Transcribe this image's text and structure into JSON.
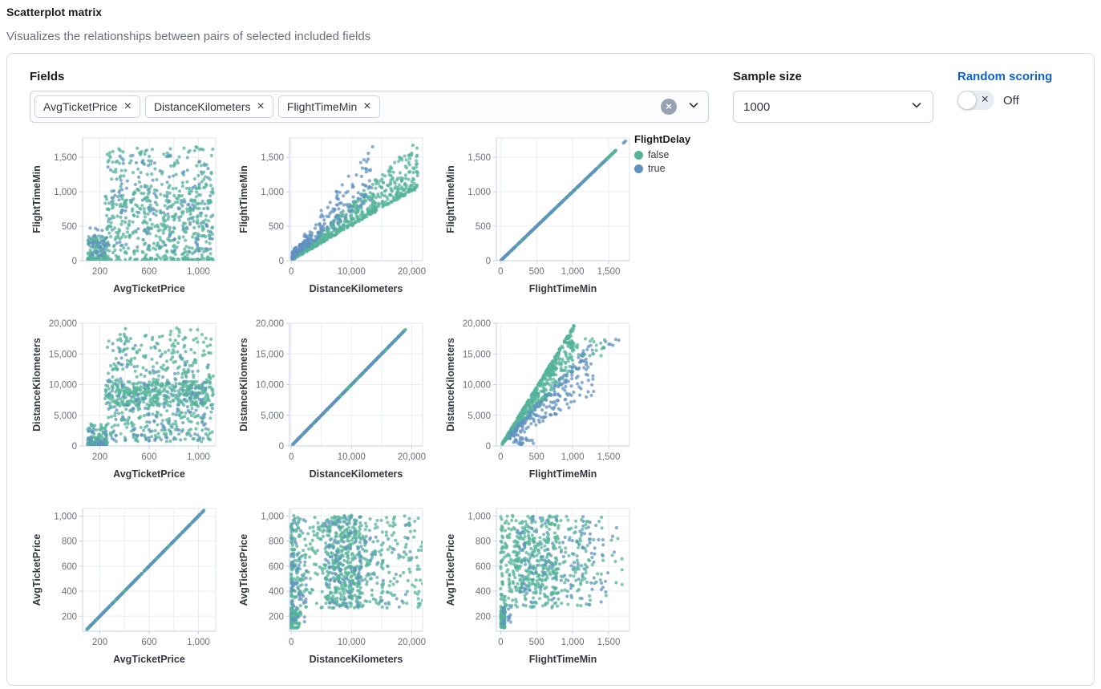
{
  "header": {
    "title": "Scatterplot matrix",
    "subtitle": "Visualizes the relationships between pairs of selected included fields"
  },
  "controls": {
    "fields": {
      "label": "Fields",
      "selected": [
        "AvgTicketPrice",
        "DistanceKilometers",
        "FlightTimeMin"
      ]
    },
    "sample_size": {
      "label": "Sample size",
      "value": "1000"
    },
    "random_scoring": {
      "label": "Random scoring",
      "state": "Off",
      "enabled": false
    }
  },
  "legend": {
    "title": "FlightDelay",
    "items": [
      {
        "label": "false",
        "color": "#54B399"
      },
      {
        "label": "true",
        "color": "#6092C0"
      }
    ]
  },
  "colors": {
    "link_blue": "#0d64d1",
    "panel_border": "#d3dae6",
    "grid_line": "#e9eef6",
    "axis_line": "#c6d1e3",
    "plot_border": "#dde4f0",
    "tick_text": "#69707d",
    "axis_title_text": "#343741",
    "point_green": "#54B399",
    "point_blue": "#6092C0"
  },
  "chart_data": {
    "type": "scatter",
    "layout": "scatter_matrix_3x3",
    "color_by": "FlightDelay",
    "series_colors": {
      "false": "#54B399",
      "true": "#6092C0"
    },
    "point_opacity": 0.75,
    "point_radius": 2.1,
    "fields": [
      "AvgTicketPrice",
      "DistanceKilometers",
      "FlightTimeMin"
    ],
    "axes": {
      "AvgTicketPrice": {
        "as_x": {
          "domain": [
            60,
            1140
          ],
          "ticks": [
            [
              200,
              "200"
            ],
            [
              400,
              ""
            ],
            [
              600,
              "600"
            ],
            [
              800,
              ""
            ],
            [
              1000,
              "1,000"
            ]
          ]
        },
        "as_y": {
          "domain": [
            80,
            1060
          ],
          "ticks": [
            [
              200,
              "200"
            ],
            [
              400,
              "400"
            ],
            [
              600,
              "600"
            ],
            [
              800,
              "800"
            ],
            [
              1000,
              "1,000"
            ]
          ]
        }
      },
      "DistanceKilometers": {
        "as_x": {
          "domain": [
            -300,
            21800
          ],
          "ticks": [
            [
              0,
              "0"
            ],
            [
              5000,
              ""
            ],
            [
              10000,
              "10,000"
            ],
            [
              15000,
              ""
            ],
            [
              20000,
              "20,000"
            ]
          ]
        },
        "as_y": {
          "domain": [
            0,
            20000
          ],
          "ticks": [
            [
              0,
              "0"
            ],
            [
              5000,
              "5,000"
            ],
            [
              10000,
              "10,000"
            ],
            [
              15000,
              "15,000"
            ],
            [
              20000,
              "20,000"
            ]
          ]
        }
      },
      "FlightTimeMin": {
        "as_x": {
          "domain": [
            -60,
            1790
          ],
          "ticks": [
            [
              0,
              "0"
            ],
            [
              500,
              "500"
            ],
            [
              1000,
              "1,000"
            ],
            [
              1500,
              "1,500"
            ]
          ]
        },
        "as_y": {
          "domain": [
            0,
            1780
          ],
          "ticks": [
            [
              0,
              "0"
            ],
            [
              500,
              "500"
            ],
            [
              1000,
              "1,000"
            ],
            [
              1500,
              "1,500"
            ]
          ]
        }
      }
    },
    "charts": [
      {
        "x": "AvgTicketPrice",
        "y": "FlightTimeMin",
        "pattern": "random-scatter",
        "series": [
          {
            "name": "false",
            "gen": [
              {
                "t": "box",
                "n": 430,
                "x": [
                  240,
                  1120
                ],
                "y": [
                  30,
                  1060
                ]
              },
              {
                "t": "box",
                "n": 110,
                "x": [
                  260,
                  1120
                ],
                "y": [
                  1060,
                  1660
                ]
              },
              {
                "t": "box",
                "n": 100,
                "x": [
                  100,
                  260
                ],
                "y": [
                  0,
                  360
                ],
                "yp": 1.6
              },
              {
                "t": "box",
                "n": 90,
                "x": [
                  100,
                  1120
                ],
                "y": [
                  0,
                  35
                ]
              }
            ]
          },
          {
            "name": "true",
            "gen": [
              {
                "t": "box",
                "n": 125,
                "x": [
                  250,
                  1120
                ],
                "y": [
                  120,
                  1530
                ]
              },
              {
                "t": "box",
                "n": 40,
                "x": [
                  100,
                  260
                ],
                "y": [
                  60,
                  480
                ]
              }
            ]
          }
        ]
      },
      {
        "x": "DistanceKilometers",
        "y": "FlightTimeMin",
        "pattern": "positive-correlation",
        "series": [
          {
            "name": "false",
            "gen": [
              {
                "t": "fan",
                "n": 620,
                "xmin": 100,
                "xmax": 21000,
                "slope": 0.05,
                "lo": 0,
                "hi": 0.65,
                "pow": 2.2,
                "add": 30
              }
            ]
          },
          {
            "name": "true",
            "gen": [
              {
                "t": "fan",
                "n": 230,
                "xmin": 150,
                "xmax": 13500,
                "slope": 0.05,
                "lo": 0.25,
                "hi": 1.45,
                "pow": 1.6,
                "xpow": 1.7,
                "add": 120
              }
            ]
          }
        ]
      },
      {
        "x": "FlightTimeMin",
        "y": "FlightTimeMin",
        "pattern": "identity-line",
        "series": [
          {
            "name": "false",
            "gen": [
              {
                "t": "id",
                "n": 420,
                "min": 5,
                "max": 1600
              }
            ]
          },
          {
            "name": "true",
            "gen": [
              {
                "t": "id",
                "n": 130,
                "min": 5,
                "max": 1450
              },
              {
                "t": "id",
                "n": 3,
                "min": 1700,
                "max": 1750
              }
            ]
          }
        ]
      },
      {
        "x": "AvgTicketPrice",
        "y": "DistanceKilometers",
        "pattern": "random-scatter",
        "series": [
          {
            "name": "false",
            "gen": [
              {
                "t": "box",
                "n": 400,
                "x": [
                  240,
                  1120
                ],
                "y": [
                  6500,
                  10500
                ]
              },
              {
                "t": "box",
                "n": 170,
                "x": [
                  240,
                  1120
                ],
                "y": [
                  700,
                  6500
                ]
              },
              {
                "t": "box",
                "n": 160,
                "x": [
                  260,
                  1120
                ],
                "y": [
                  10500,
                  17800
                ]
              },
              {
                "t": "box",
                "n": 16,
                "x": [
                  350,
                  1050
                ],
                "y": [
                  17800,
                  19200
                ]
              },
              {
                "t": "box",
                "n": 100,
                "x": [
                  100,
                  260
                ],
                "y": [
                  0,
                  3600
                ],
                "yp": 2
              },
              {
                "t": "box",
                "n": 60,
                "x": [
                  100,
                  260
                ],
                "y": [
                  0,
                  700
                ]
              }
            ]
          },
          {
            "name": "true",
            "gen": [
              {
                "t": "box",
                "n": 115,
                "x": [
                  250,
                  1120
                ],
                "y": [
                  800,
                  11000
                ]
              },
              {
                "t": "box",
                "n": 22,
                "x": [
                  300,
                  1100
                ],
                "y": [
                  11000,
                  17000
                ]
              },
              {
                "t": "box",
                "n": 30,
                "x": [
                  100,
                  260
                ],
                "y": [
                  0,
                  3000
                ],
                "yp": 2
              }
            ]
          }
        ]
      },
      {
        "x": "DistanceKilometers",
        "y": "DistanceKilometers",
        "pattern": "identity-line",
        "series": [
          {
            "name": "false",
            "gen": [
              {
                "t": "id",
                "n": 430,
                "min": 80,
                "max": 19000
              }
            ]
          },
          {
            "name": "true",
            "gen": [
              {
                "t": "id",
                "n": 130,
                "min": 80,
                "max": 18500
              }
            ]
          }
        ]
      },
      {
        "x": "FlightTimeMin",
        "y": "DistanceKilometers",
        "pattern": "positive-correlation",
        "series": [
          {
            "name": "false",
            "gen": [
              {
                "t": "fan",
                "n": 600,
                "xmin": 20,
                "xmax": 1020,
                "slope": 19.3,
                "lo": 0,
                "hi": -0.38,
                "pow": 2
              },
              {
                "t": "box",
                "n": 22,
                "x": [
                  1050,
                  1450
                ],
                "y": [
                  14500,
                  17600
                ]
              }
            ]
          },
          {
            "name": "true",
            "gen": [
              {
                "t": "fan",
                "n": 200,
                "xmin": 120,
                "xmax": 1300,
                "slope": 13,
                "lo": 0.02,
                "hi": -0.5,
                "pow": 1.3,
                "add": 300
              },
              {
                "t": "box",
                "n": 22,
                "x": [
                  180,
                  460
                ],
                "y": [
                  0,
                  1400
                ]
              },
              {
                "t": "box",
                "n": 6,
                "x": [
                  1450,
                  1760
                ],
                "y": [
                  16200,
                  17600
                ]
              }
            ]
          }
        ]
      },
      {
        "x": "AvgTicketPrice",
        "y": "AvgTicketPrice",
        "pattern": "identity-line",
        "series": [
          {
            "name": "false",
            "gen": [
              {
                "t": "id",
                "n": 400,
                "min": 95,
                "max": 1045
              }
            ]
          },
          {
            "name": "true",
            "gen": [
              {
                "t": "id",
                "n": 110,
                "min": 95,
                "max": 1045
              }
            ]
          }
        ]
      },
      {
        "x": "DistanceKilometers",
        "y": "AvgTicketPrice",
        "pattern": "random-scatter",
        "series": [
          {
            "name": "false",
            "gen": [
              {
                "t": "box",
                "n": 130,
                "x": [
                  0,
                  2600
                ],
                "y": [
                  265,
                  1005
                ],
                "xp": 2
              },
              {
                "t": "box",
                "n": 95,
                "x": [
                  0,
                  1600
                ],
                "y": [
                  100,
                  265
                ],
                "xp": 2.2
              },
              {
                "t": "box",
                "n": 400,
                "x": [
                  5600,
                  11600
                ],
                "y": [
                  265,
                  1005
                ]
              },
              {
                "t": "box",
                "n": 120,
                "x": [
                  11600,
                  17500
                ],
                "y": [
                  265,
                  1000
                ]
              },
              {
                "t": "box",
                "n": 55,
                "x": [
                  17500,
                  22000
                ],
                "y": [
                  265,
                  1000
                ]
              },
              {
                "t": "box",
                "n": 50,
                "x": [
                  2600,
                  5600
                ],
                "y": [
                  265,
                  1000
                ]
              }
            ]
          },
          {
            "name": "true",
            "gen": [
              {
                "t": "box",
                "n": 60,
                "x": [
                  0,
                  2600
                ],
                "y": [
                  150,
                  1000
                ],
                "xp": 1.8
              },
              {
                "t": "box",
                "n": 90,
                "x": [
                  5600,
                  11600
                ],
                "y": [
                  265,
                  1000
                ]
              },
              {
                "t": "box",
                "n": 30,
                "x": [
                  11600,
                  20500
                ],
                "y": [
                  265,
                  950
                ]
              }
            ]
          }
        ]
      },
      {
        "x": "FlightTimeMin",
        "y": "AvgTicketPrice",
        "pattern": "random-scatter",
        "series": [
          {
            "name": "false",
            "gen": [
              {
                "t": "box",
                "n": 120,
                "x": [
                  0,
                  60
                ],
                "y": [
                  100,
                  270
                ]
              },
              {
                "t": "box",
                "n": 70,
                "x": [
                  0,
                  130
                ],
                "y": [
                  270,
                  1000
                ],
                "xp": 1.5
              },
              {
                "t": "box",
                "n": 380,
                "x": [
                  120,
                  800
                ],
                "y": [
                  265,
                  1005
                ]
              },
              {
                "t": "box",
                "n": 90,
                "x": [
                  800,
                  1250
                ],
                "y": [
                  265,
                  1000
                ]
              },
              {
                "t": "box",
                "n": 20,
                "x": [
                  1250,
                  1700
                ],
                "y": [
                  300,
                  1000
                ]
              }
            ]
          },
          {
            "name": "true",
            "gen": [
              {
                "t": "box",
                "n": 100,
                "x": [
                  200,
                  1300
                ],
                "y": [
                  265,
                  1000
                ]
              },
              {
                "t": "box",
                "n": 18,
                "x": [
                  1300,
                  1620
                ],
                "y": [
                  300,
                  950
                ]
              },
              {
                "t": "box",
                "n": 15,
                "x": [
                  0,
                  150
                ],
                "y": [
                  100,
                  280
                ]
              }
            ]
          }
        ]
      }
    ]
  }
}
